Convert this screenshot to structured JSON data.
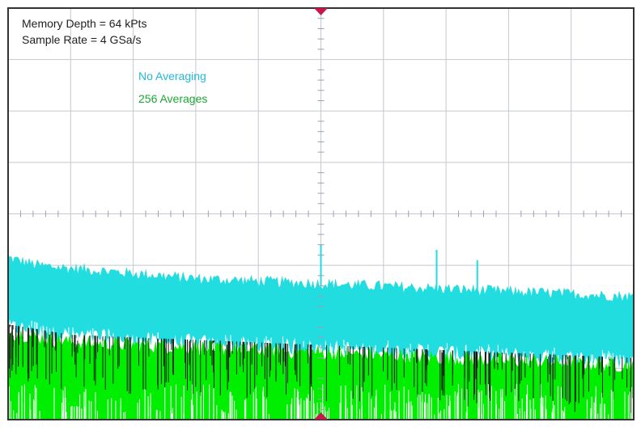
{
  "chart_data": {
    "type": "area",
    "title": "",
    "xlabel": "",
    "ylabel": "",
    "grid": true,
    "annotations": {
      "memory_depth": "Memory Depth = 64 kPts",
      "sample_rate": "Sample Rate = 4 GSa/s"
    },
    "divisions": {
      "x": 10,
      "y": 8
    },
    "xlim": [
      0,
      10
    ],
    "ylim": [
      -4,
      4
    ],
    "series": [
      {
        "name": "No Averaging",
        "color": "#22dde0",
        "top": {
          "x": [
            0,
            0.5,
            1,
            2,
            3,
            4,
            5,
            6,
            7,
            8,
            9,
            10
          ],
          "y": [
            -0.9,
            -1.05,
            -1.1,
            -1.2,
            -1.3,
            -1.35,
            -1.4,
            -1.45,
            -1.5,
            -1.55,
            -1.6,
            -1.65
          ]
        },
        "bottom": {
          "x": [
            0,
            1,
            2,
            3,
            4,
            5,
            6,
            7,
            8,
            9,
            10
          ],
          "y": [
            -2.2,
            -2.35,
            -2.45,
            -2.5,
            -2.55,
            -2.6,
            -2.65,
            -2.7,
            -2.75,
            -2.8,
            -2.85
          ]
        },
        "spikes": [
          {
            "x": 5.0,
            "y": -0.6
          },
          {
            "x": 6.85,
            "y": -0.7
          },
          {
            "x": 7.5,
            "y": -0.9
          }
        ]
      },
      {
        "name": "256 Averages",
        "color": "#00ee00",
        "top": {
          "x": [
            0,
            1,
            2,
            3,
            4,
            5,
            6,
            7,
            8,
            9,
            10
          ],
          "y": [
            -2.3,
            -2.5,
            -2.55,
            -2.6,
            -2.65,
            -2.7,
            -2.75,
            -2.8,
            -2.85,
            -2.9,
            -2.95
          ]
        },
        "bottom": {
          "x": [
            0,
            10
          ],
          "y": [
            -4,
            -4
          ]
        }
      }
    ]
  }
}
